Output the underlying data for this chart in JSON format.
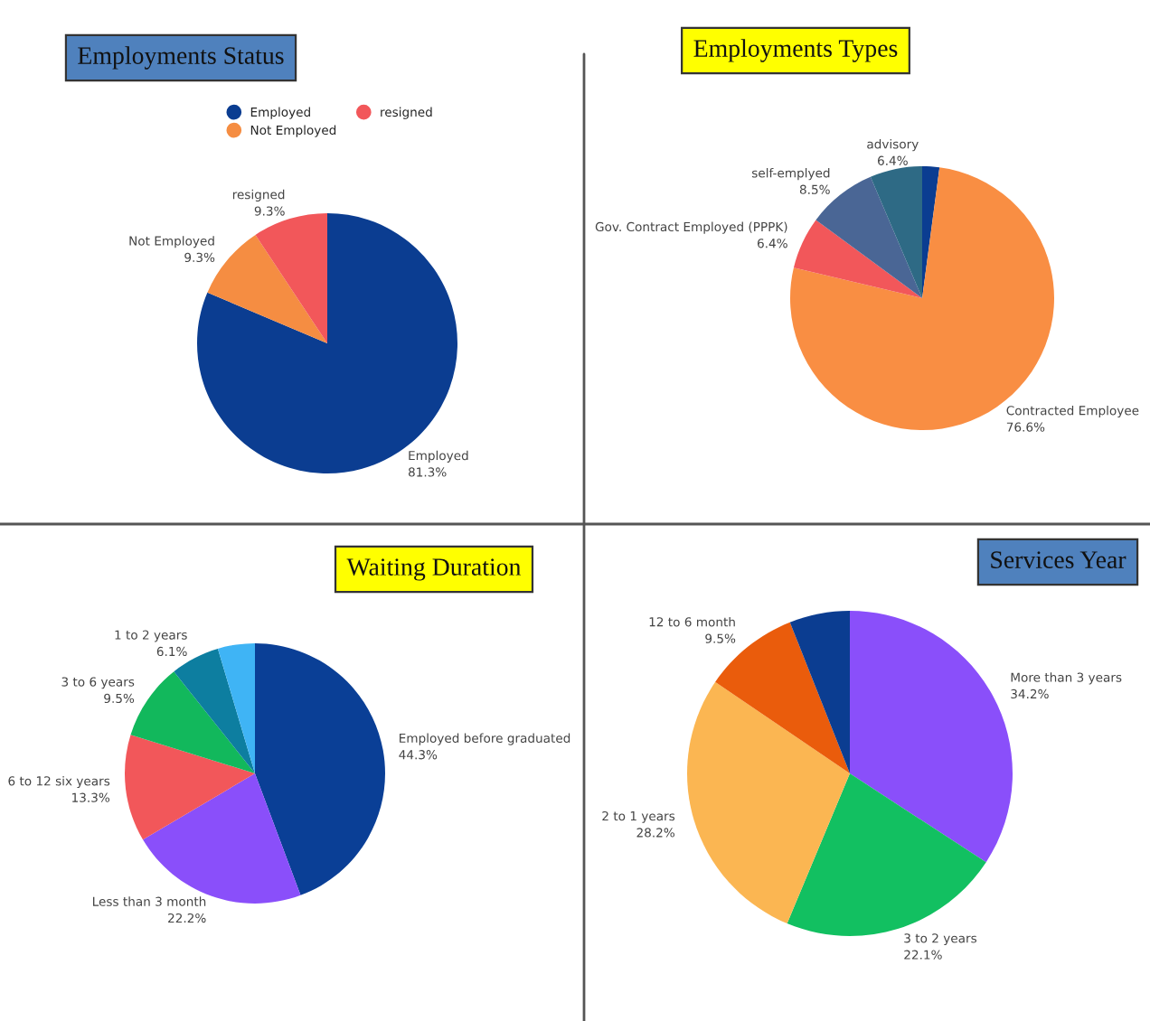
{
  "chart_data": [
    {
      "type": "pie",
      "title": "Employments Status",
      "categories": [
        "Employed",
        "Not Employed",
        "resigned"
      ],
      "values": [
        81.3,
        9.3,
        9.3
      ],
      "colors": [
        "#0b3d91",
        "#f58d42",
        "#f2575a"
      ],
      "value_labels": [
        "81.3%",
        "9.3%",
        "9.3%"
      ],
      "legend": "top"
    },
    {
      "type": "pie",
      "title": "Employments Types",
      "categories": [
        null,
        "Contracted Employee",
        "Gov. Contract Employed (PPPK)",
        "self-emplyed",
        "advisory"
      ],
      "values": [
        2.1,
        76.6,
        6.4,
        8.5,
        6.4
      ],
      "colors": [
        "#0b3d91",
        "#f98e43",
        "#f2575a",
        "#4a6695",
        "#2e6a85"
      ],
      "value_labels": [
        null,
        "76.6%",
        "6.4%",
        "8.5%",
        "6.4%"
      ]
    },
    {
      "type": "pie",
      "title": "Waiting Duration",
      "categories": [
        "Employed before graduated",
        "Less than 3 month",
        "6 to 12 six years",
        "3 to 6 years",
        "1 to 2 years",
        null
      ],
      "values": [
        44.3,
        22.2,
        13.3,
        9.5,
        6.1,
        4.6
      ],
      "colors": [
        "#0a3f96",
        "#8a4ffa",
        "#f2575a",
        "#12b85c",
        "#0d7ea0",
        "#3fb4f5"
      ],
      "value_labels": [
        "44.3%",
        "22.2%",
        "13.3%",
        "9.5%",
        "6.1%",
        null
      ]
    },
    {
      "type": "pie",
      "title": "Services Year",
      "categories": [
        "More than 3 years",
        "3 to 2 years",
        "2 to 1 years",
        "12 to 6 month",
        null
      ],
      "values": [
        34.2,
        22.1,
        28.2,
        9.5,
        6.0
      ],
      "colors": [
        "#8a4ffa",
        "#12c061",
        "#fbb652",
        "#ea5c0c",
        "#0b3d91"
      ],
      "value_labels": [
        "34.2%",
        "22.1%",
        "28.2%",
        "9.5%",
        null
      ]
    }
  ]
}
